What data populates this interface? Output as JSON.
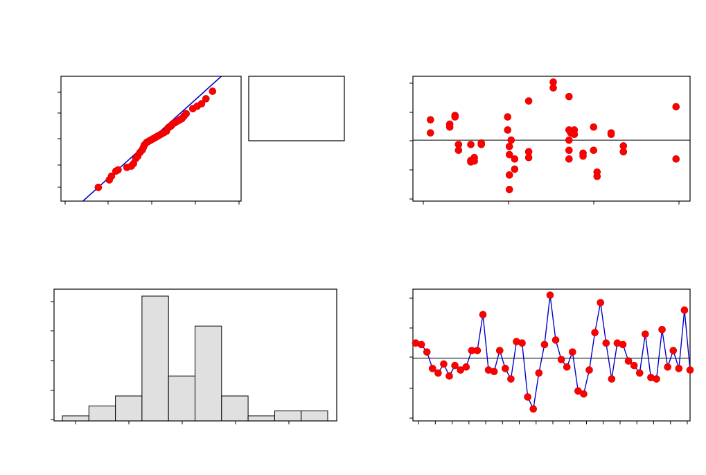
{
  "colors": {
    "point": "#ff0000",
    "point_edge": "#cc0000",
    "line": "#0000cc",
    "axis": "#000000",
    "bar_fill": "#e0e0e0",
    "bar_edge": "#000000",
    "background": "#ffffff"
  },
  "chart_data": [
    {
      "id": "normal-probability-plot",
      "type": "scatter",
      "title": "",
      "xlabel": "",
      "ylabel": "",
      "xlim": [
        0,
        8.2
      ],
      "ylim": [
        0,
        1
      ],
      "fit_line": [
        [
          1.0,
          0.0
        ],
        [
          7.3,
          1.0
        ]
      ],
      "points": [
        [
          1.7,
          0.11
        ],
        [
          2.2,
          0.17
        ],
        [
          2.3,
          0.2
        ],
        [
          2.5,
          0.24
        ],
        [
          2.6,
          0.25
        ],
        [
          3.0,
          0.27
        ],
        [
          3.2,
          0.28
        ],
        [
          3.3,
          0.3
        ],
        [
          3.4,
          0.34
        ],
        [
          3.5,
          0.36
        ],
        [
          3.6,
          0.39
        ],
        [
          3.7,
          0.41
        ],
        [
          3.75,
          0.43
        ],
        [
          3.8,
          0.45
        ],
        [
          3.9,
          0.47
        ],
        [
          4.0,
          0.48
        ],
        [
          4.1,
          0.49
        ],
        [
          4.2,
          0.5
        ],
        [
          4.3,
          0.51
        ],
        [
          4.4,
          0.52
        ],
        [
          4.5,
          0.53
        ],
        [
          4.6,
          0.54
        ],
        [
          4.7,
          0.55
        ],
        [
          4.8,
          0.56
        ],
        [
          4.85,
          0.58
        ],
        [
          4.9,
          0.59
        ],
        [
          5.0,
          0.6
        ],
        [
          5.05,
          0.61
        ],
        [
          5.1,
          0.62
        ],
        [
          5.2,
          0.63
        ],
        [
          5.3,
          0.64
        ],
        [
          5.4,
          0.65
        ],
        [
          5.5,
          0.66
        ],
        [
          5.6,
          0.68
        ],
        [
          5.7,
          0.7
        ],
        [
          6.0,
          0.74
        ],
        [
          6.2,
          0.76
        ],
        [
          6.4,
          0.78
        ],
        [
          6.6,
          0.82
        ],
        [
          6.9,
          0.88
        ]
      ]
    },
    {
      "id": "legend-box",
      "type": "table",
      "entries": []
    },
    {
      "id": "residuals-vs-fits",
      "type": "scatter",
      "title": "",
      "xlabel": "",
      "ylabel": "",
      "xlim": [
        0,
        15.8
      ],
      "ylim": [
        -2.1,
        2.2
      ],
      "reference_line": 0,
      "points": [
        [
          1.0,
          0.7
        ],
        [
          1.0,
          0.25
        ],
        [
          2.1,
          0.55
        ],
        [
          2.1,
          0.45
        ],
        [
          2.4,
          0.85
        ],
        [
          2.4,
          0.8
        ],
        [
          2.6,
          -0.15
        ],
        [
          2.6,
          -0.35
        ],
        [
          3.3,
          -0.15
        ],
        [
          3.3,
          -0.7
        ],
        [
          3.3,
          -0.75
        ],
        [
          3.5,
          -0.6
        ],
        [
          3.5,
          -0.72
        ],
        [
          3.9,
          -0.1
        ],
        [
          3.9,
          -0.15
        ],
        [
          5.4,
          0.8
        ],
        [
          5.4,
          0.35
        ],
        [
          5.5,
          -0.22
        ],
        [
          5.5,
          -0.5
        ],
        [
          5.5,
          -1.2
        ],
        [
          5.5,
          -1.7
        ],
        [
          5.6,
          0.0
        ],
        [
          5.8,
          -0.65
        ],
        [
          5.8,
          -1.0
        ],
        [
          6.6,
          1.35
        ],
        [
          6.6,
          -0.4
        ],
        [
          6.6,
          -0.6
        ],
        [
          8.0,
          2.0
        ],
        [
          8.0,
          1.8
        ],
        [
          8.9,
          1.5
        ],
        [
          8.9,
          0.35
        ],
        [
          8.9,
          0.0
        ],
        [
          8.9,
          -0.35
        ],
        [
          8.9,
          -0.65
        ],
        [
          9.0,
          0.25
        ],
        [
          9.2,
          0.35
        ],
        [
          9.2,
          0.2
        ],
        [
          9.7,
          -0.45
        ],
        [
          9.7,
          -0.55
        ],
        [
          10.3,
          0.45
        ],
        [
          10.3,
          -0.35
        ],
        [
          10.5,
          -1.1
        ],
        [
          10.5,
          -1.25
        ],
        [
          11.3,
          0.25
        ],
        [
          11.3,
          0.2
        ],
        [
          12.0,
          -0.2
        ],
        [
          12.0,
          -0.4
        ],
        [
          15.0,
          1.15
        ],
        [
          15.0,
          -0.65
        ]
      ]
    },
    {
      "id": "histogram",
      "type": "bar",
      "title": "",
      "xlabel": "",
      "ylabel": "",
      "ylim": [
        0,
        12.5
      ],
      "values": [
        0.5,
        1.5,
        2.5,
        12.5,
        4.5,
        9.5,
        2.5,
        0.5,
        1.0,
        1.0
      ]
    },
    {
      "id": "residuals-vs-order",
      "type": "line",
      "title": "",
      "xlabel": "",
      "ylabel": "",
      "xlim": [
        0.5,
        50
      ],
      "ylim": [
        -2.1,
        2.3
      ],
      "reference_line": 0,
      "values": [
        0.5,
        0.45,
        0.2,
        -0.35,
        -0.5,
        -0.2,
        -0.6,
        -0.25,
        -0.4,
        -0.3,
        0.25,
        0.25,
        1.45,
        -0.4,
        -0.45,
        0.25,
        -0.35,
        -0.7,
        0.55,
        0.5,
        -1.3,
        -1.7,
        -0.5,
        0.45,
        2.1,
        0.6,
        -0.05,
        -0.3,
        0.2,
        -1.1,
        -1.2,
        -0.4,
        0.85,
        1.85,
        0.5,
        -0.7,
        0.5,
        0.45,
        -0.1,
        -0.25,
        -0.5,
        0.8,
        -0.65,
        -0.7,
        0.95,
        -0.3,
        0.25,
        -0.35,
        1.6,
        -0.4
      ]
    }
  ]
}
